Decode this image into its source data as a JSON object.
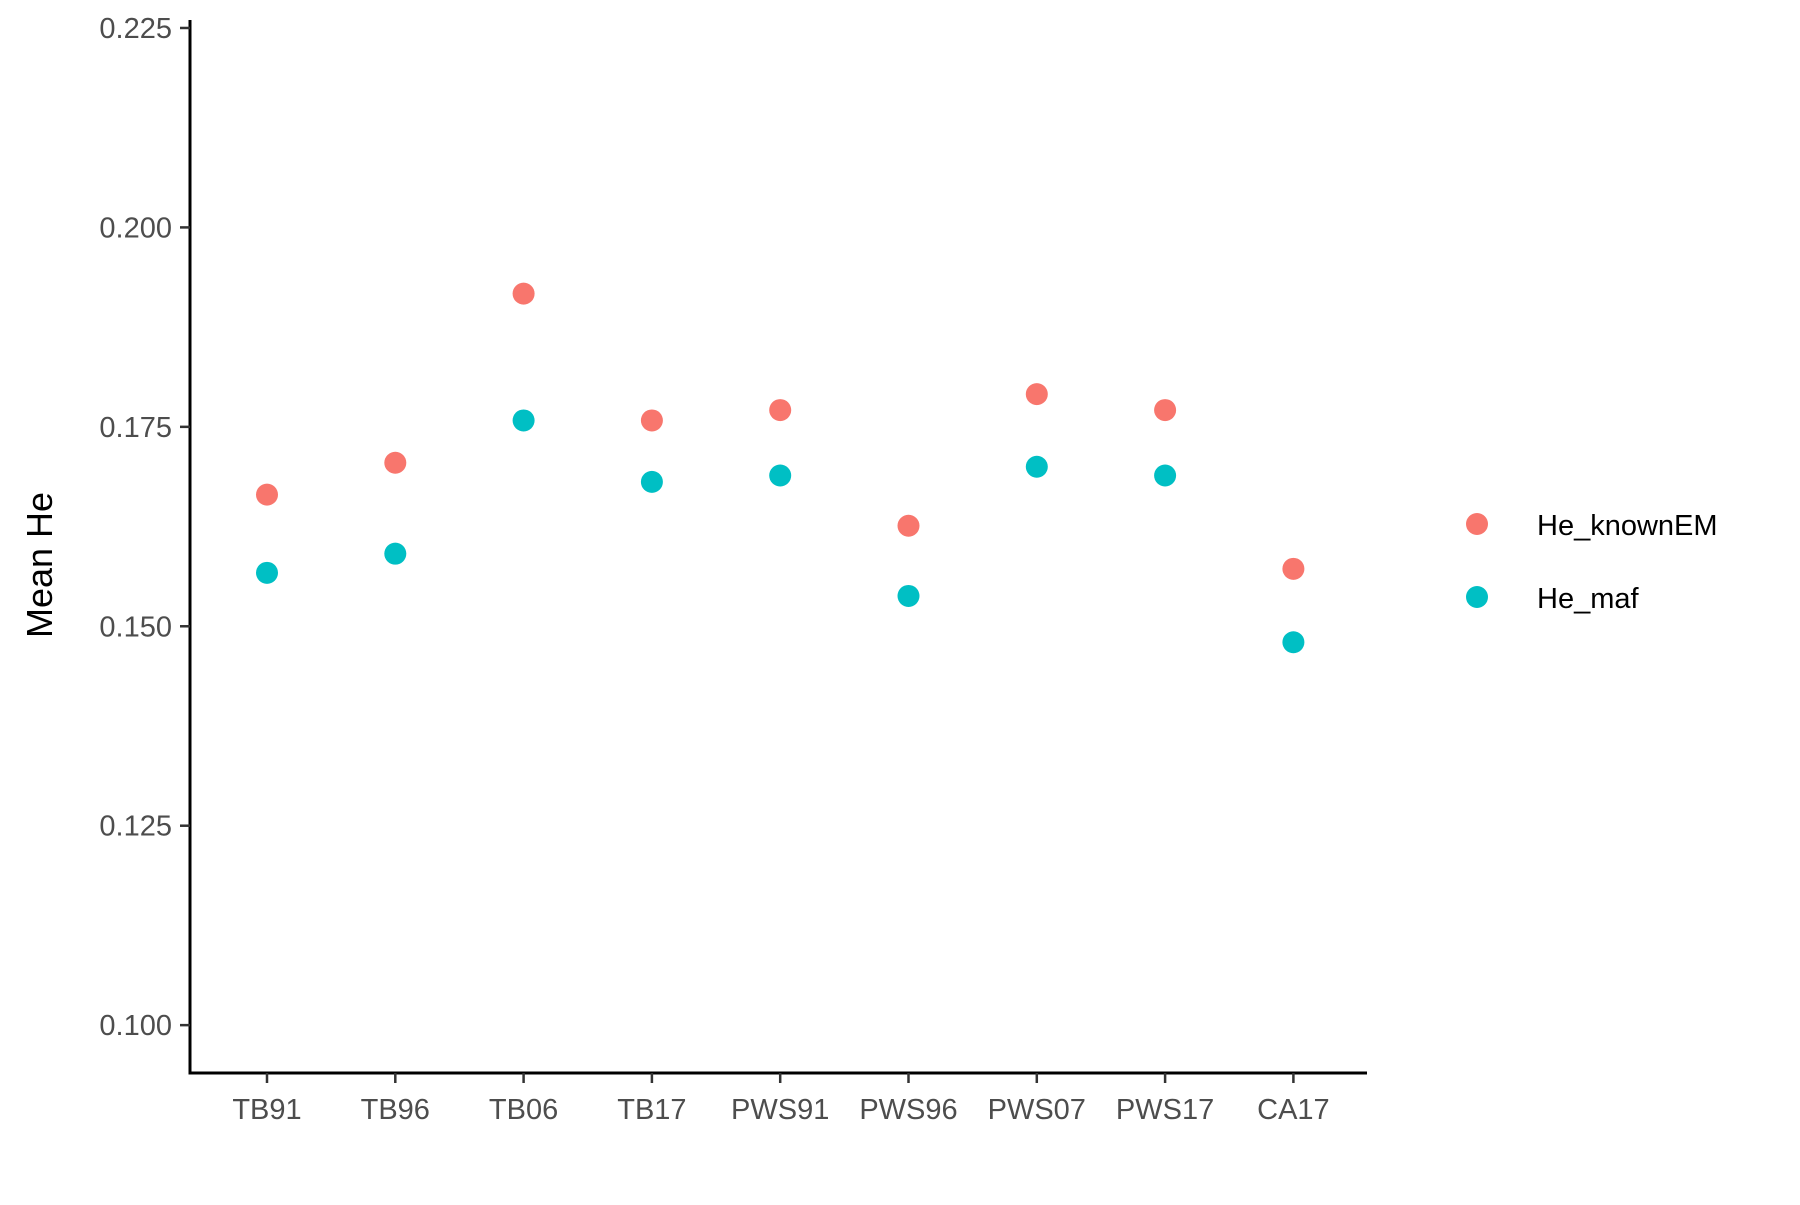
{
  "chart_data": {
    "type": "scatter",
    "title": "",
    "xlabel": "",
    "ylabel": "Mean He",
    "categories": [
      "TB91",
      "TB96",
      "TB06",
      "TB17",
      "PWS91",
      "PWS96",
      "PWS07",
      "PWS17",
      "CA17"
    ],
    "ylim": [
      0.094,
      0.226
    ],
    "yticks": [
      "0.100",
      "0.125",
      "0.150",
      "0.175",
      "0.200",
      "0.225"
    ],
    "grid": false,
    "legend_position": "right",
    "series": [
      {
        "name": "He_knownEM",
        "color": "#F8766D",
        "values": [
          0.1665,
          0.1705,
          0.1917,
          0.1758,
          0.1771,
          0.1626,
          0.1791,
          0.1771,
          0.1572
        ]
      },
      {
        "name": "He_maf",
        "color": "#00BFC4",
        "values": [
          0.1567,
          0.1591,
          0.1758,
          0.1681,
          0.1689,
          0.1538,
          0.17,
          0.1689,
          0.148
        ]
      }
    ]
  }
}
